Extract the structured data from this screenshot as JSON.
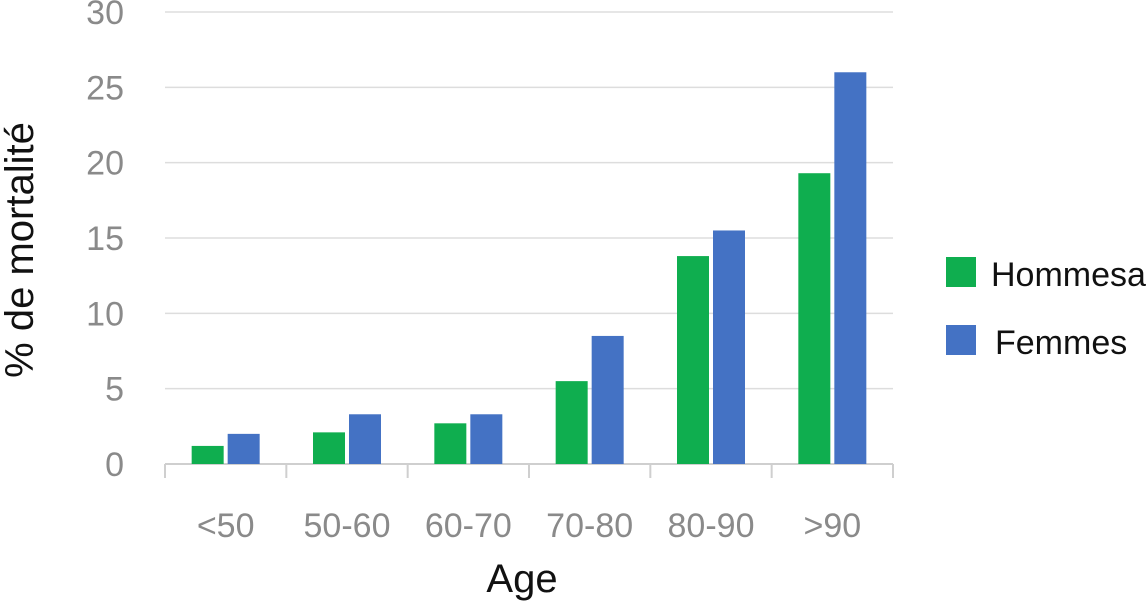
{
  "chart_data": {
    "type": "bar",
    "title": "",
    "xlabel": "Age",
    "ylabel": "% de mortalité",
    "categories": [
      "<50",
      "50-60",
      "60-70",
      "70-80",
      "80-90",
      ">90"
    ],
    "series": [
      {
        "name": "Hommesa",
        "color": "#0fae4f",
        "values": [
          1.2,
          2.1,
          2.7,
          5.5,
          13.8,
          19.3
        ]
      },
      {
        "name": "Femmes",
        "color": "#4472c4",
        "values": [
          2.0,
          3.3,
          3.3,
          8.5,
          15.5,
          26.0
        ]
      }
    ],
    "ylim": [
      0,
      30
    ],
    "yticks": [
      0,
      5,
      10,
      15,
      20,
      25,
      30
    ],
    "grid": true,
    "legend": "right"
  }
}
